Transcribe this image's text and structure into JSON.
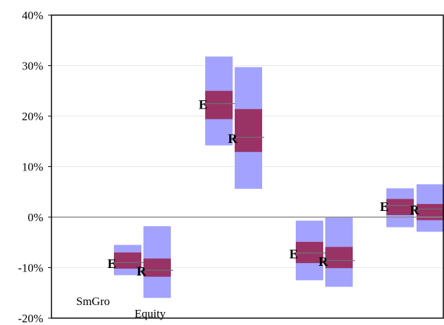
{
  "chart_data": {
    "type": "floating-range-box",
    "y_tick_labels": [
      "40%",
      "30%",
      "20%",
      "10%",
      "0%",
      "-10%",
      "-20%"
    ],
    "y_ticks": [
      40,
      30,
      20,
      10,
      0,
      -10,
      -20
    ],
    "ylim": [
      -20,
      40
    ],
    "grid": true,
    "category_labels": [
      "SmGro",
      "Equity"
    ],
    "colors": {
      "outer": "#a3a3ff",
      "inner": "#993366",
      "median": "#707070",
      "zero_line": "#8c8c8c",
      "grid": "#e6e6e6"
    },
    "groups": [
      {
        "marker": "E",
        "outer": [
          -11.5,
          -5.5
        ],
        "inner": [
          -10.2,
          -7.0
        ],
        "median": -9.0
      },
      {
        "marker": "R",
        "outer": [
          -16.0,
          -1.8
        ],
        "inner": [
          -11.8,
          -8.2
        ],
        "median": -10.5
      },
      {
        "marker": "E",
        "outer": [
          14.2,
          31.8
        ],
        "inner": [
          19.4,
          25.0
        ],
        "median": 22.5
      },
      {
        "marker": "R",
        "outer": [
          5.6,
          29.7
        ],
        "inner": [
          12.9,
          21.4
        ],
        "median": 15.8
      },
      {
        "marker": "E",
        "outer": [
          -12.5,
          -0.7
        ],
        "inner": [
          -9.1,
          -4.9
        ],
        "median": -7.1
      },
      {
        "marker": "R",
        "outer": [
          -13.8,
          0
        ],
        "inner": [
          -10.1,
          -5.9
        ],
        "median": -8.6
      },
      {
        "marker": "E",
        "outer": [
          -2.0,
          5.7
        ],
        "inner": [
          0.4,
          3.6
        ],
        "median": 2.3
      },
      {
        "marker": "R",
        "outer": [
          -2.9,
          6.5
        ],
        "inner": [
          -0.6,
          2.6
        ],
        "median": 1.6
      }
    ]
  }
}
